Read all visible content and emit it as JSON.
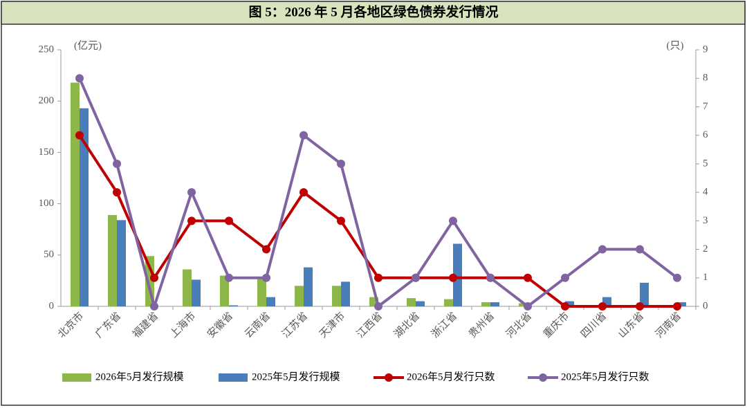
{
  "chart_data": {
    "type": "bar-line",
    "title": "图 5：2026 年 5 月各地区绿色债券发行情况",
    "y_unit": "(亿元)",
    "y2_unit": "(只)",
    "categories": [
      "北京市",
      "广东省",
      "福建省",
      "上海市",
      "安徽省",
      "云南省",
      "江苏省",
      "天津市",
      "江西省",
      "湖北省",
      "浙江省",
      "贵州省",
      "河北省",
      "重庆市",
      "四川省",
      "山东省",
      "河南省"
    ],
    "ylim": [
      0,
      250
    ],
    "yticks": [
      0,
      50,
      100,
      150,
      200,
      250
    ],
    "y2lim": [
      0,
      9
    ],
    "y2ticks": [
      0,
      1,
      2,
      3,
      4,
      5,
      6,
      7,
      8,
      9
    ],
    "series": [
      {
        "name": "2026年5月发行规模",
        "type": "bar",
        "color": "#8db849",
        "values": [
          218,
          89,
          49,
          36,
          30,
          28,
          20,
          20,
          9,
          8,
          7,
          4,
          3,
          0,
          0,
          0,
          0
        ]
      },
      {
        "name": "2025年5月发行规模",
        "type": "bar",
        "color": "#4a7ebb",
        "values": [
          193,
          84,
          0,
          26,
          1,
          9,
          38,
          24,
          0,
          5,
          61,
          4,
          0,
          5,
          9,
          23,
          4
        ]
      },
      {
        "name": "2026年5月发行只数",
        "type": "line",
        "axis": "y2",
        "color": "#c00000",
        "values": [
          6,
          4,
          1,
          3,
          3,
          2,
          4,
          3,
          1,
          1,
          1,
          1,
          1,
          0,
          0,
          0,
          0
        ]
      },
      {
        "name": "2025年5月发行只数",
        "type": "line",
        "axis": "y2",
        "color": "#8064a2",
        "values": [
          8,
          5,
          0,
          4,
          1,
          1,
          6,
          5,
          0,
          1,
          3,
          1,
          0,
          1,
          2,
          2,
          1
        ]
      }
    ]
  }
}
